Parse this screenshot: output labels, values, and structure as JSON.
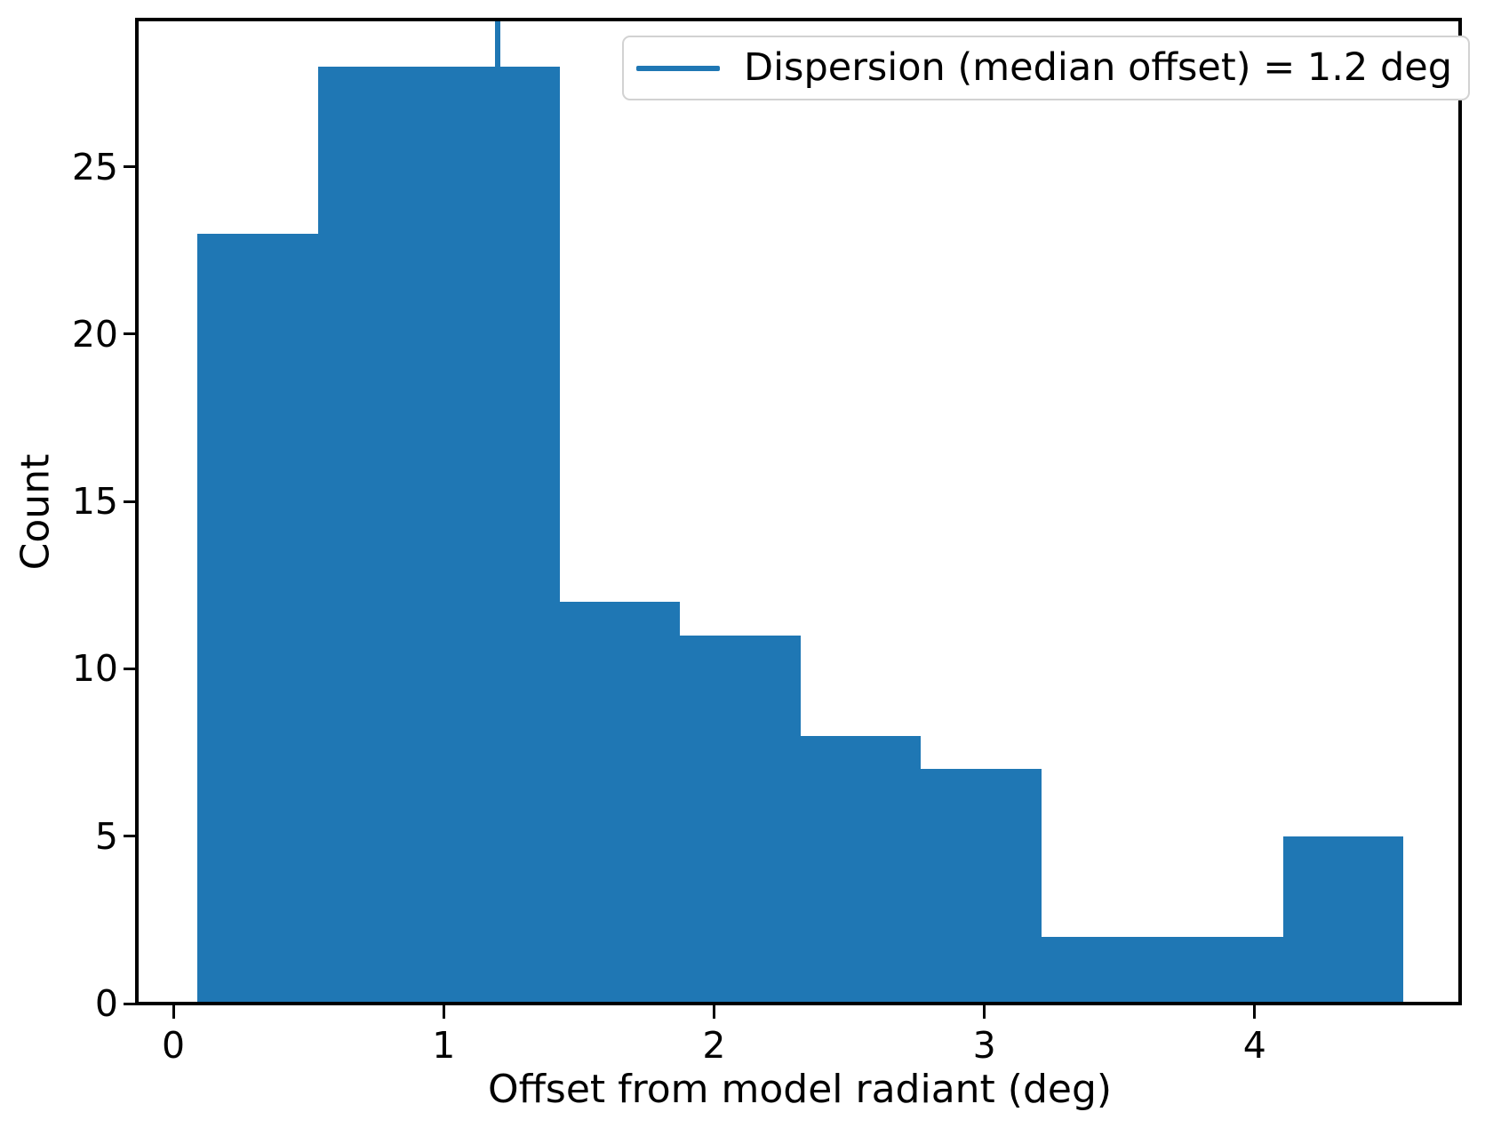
{
  "figure": {
    "background": "#ffffff",
    "text_color": "#000000"
  },
  "chart_data": {
    "type": "bar",
    "subtype": "histogram",
    "title": "",
    "xlabel": "Offset from model radiant (deg)",
    "ylabel": "Count",
    "bar_color": "#1f77b4",
    "bin_edges": [
      0.09,
      0.535,
      0.98,
      1.43,
      1.875,
      2.32,
      2.765,
      3.21,
      3.655,
      4.105,
      4.55
    ],
    "counts": [
      23,
      28,
      28,
      12,
      11,
      8,
      7,
      2,
      2,
      5
    ],
    "xticks": [
      0,
      1,
      2,
      3,
      4
    ],
    "yticks": [
      0,
      5,
      10,
      15,
      20,
      25
    ],
    "xlim": [
      -0.135,
      4.76
    ],
    "ylim": [
      0,
      29.4
    ],
    "grid": false,
    "legend_position": "upper right",
    "median_line": {
      "x": 1.2,
      "color": "#1f77b4",
      "label": "Dispersion (median offset) = 1.2 deg"
    },
    "legend": {
      "entries": [
        {
          "label": "Dispersion (median offset) = 1.2 deg",
          "color": "#1f77b4",
          "marker": "line"
        }
      ]
    }
  }
}
